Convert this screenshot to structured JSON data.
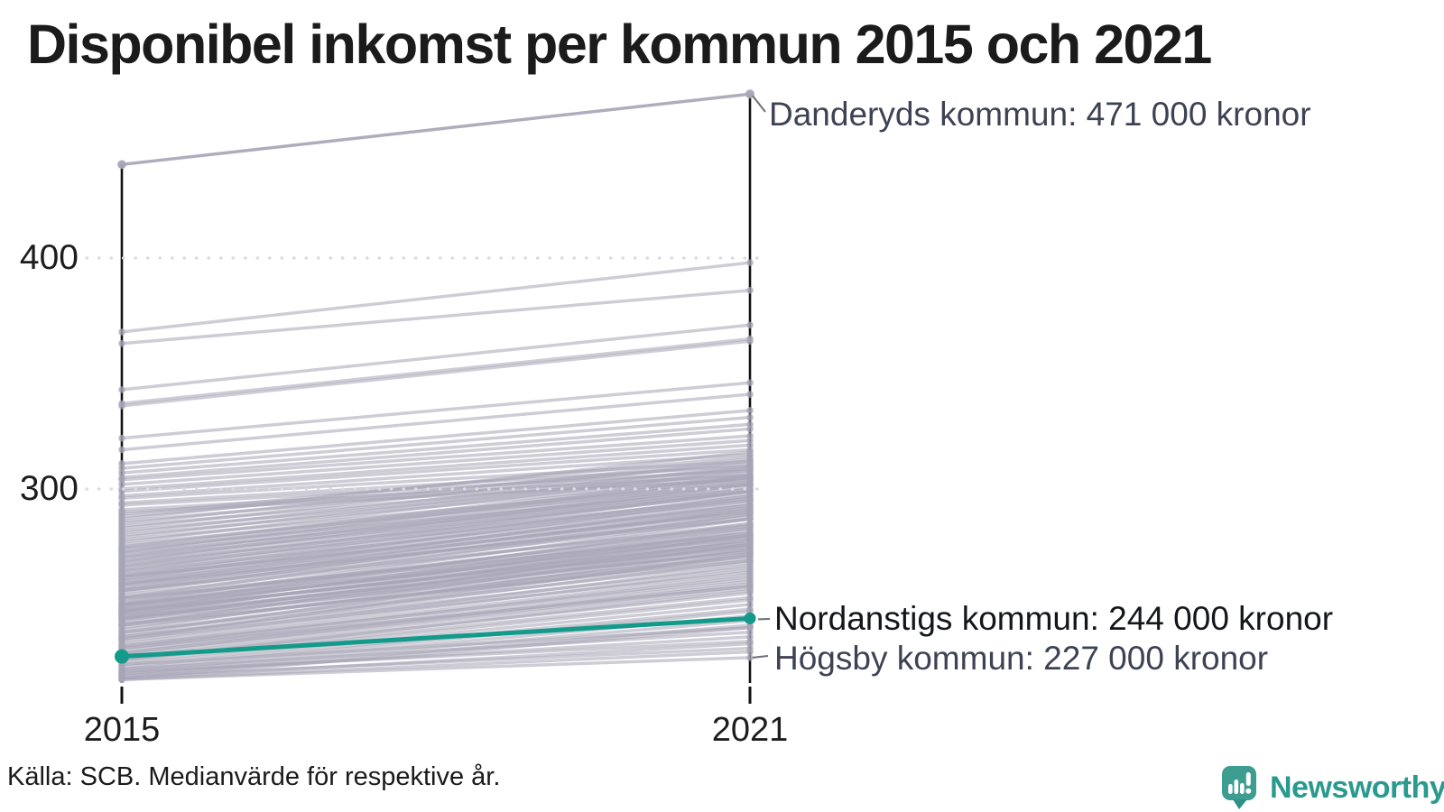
{
  "title": "Disponibel inkomst per kommun 2015 och 2021",
  "source": "Källa: SCB. Medianvärde för respektive år.",
  "brand": {
    "name": "Newsworthy"
  },
  "colors": {
    "highlight_teal": "#139a8a",
    "background_line_gray": "#a7a5b6",
    "axis_black": "#111111",
    "annotation_slate": "#3d4254",
    "annotation_black": "#14161c",
    "gridline_dot": "#dbdae2",
    "logo_teal": "#3e9d91",
    "logo_tail_teal": "#2e8f84",
    "wordmark_teal": "#2a9a8e"
  },
  "chart_data": {
    "type": "line",
    "subtype": "slope-chart",
    "x_labels": [
      "2015",
      "2021"
    ],
    "y_tick_labels": [
      "400",
      "300"
    ],
    "y_ticks": [
      400,
      300
    ],
    "unit": "tusen kronor (1000 kronor)",
    "y_axis_range": [
      217,
      471
    ],
    "grid": "dotted horizontal at ticks",
    "legend": "none",
    "annotations": [
      {
        "label": "Danderyds kommun: 471 000 kronor",
        "series": "Danderyds kommun",
        "year": 2021,
        "value": 471
      },
      {
        "label": "Nordanstigs kommun: 244 000 kronor",
        "series": "Nordanstigs kommun",
        "year": 2021,
        "value": 244
      },
      {
        "label": "Högsby kommun: 227 000 kronor",
        "series": "Högsby kommun",
        "year": 2021,
        "value": 227
      }
    ],
    "highlight_series": {
      "name": "Nordanstigs kommun",
      "values": [
        227.5,
        244
      ]
    },
    "extreme_series": {
      "top": {
        "name": "Danderyds kommun",
        "values": [
          440.5,
          471
        ]
      },
      "bottom": {
        "name": "Högsby kommun",
        "values": [
          217.5,
          227
        ]
      }
    },
    "background_series_note": "unlabeled gray municipality lines, values estimated from pixels [2015,2021]",
    "background_series": [
      [
        368,
        398
      ],
      [
        363,
        386
      ],
      [
        343,
        371
      ],
      [
        337,
        365
      ],
      [
        336,
        364
      ],
      [
        322,
        346
      ],
      [
        317,
        341
      ],
      [
        311,
        334
      ],
      [
        309,
        331
      ],
      [
        307,
        328
      ],
      [
        305,
        326
      ],
      [
        304,
        323
      ],
      [
        302,
        321
      ],
      [
        300,
        319
      ],
      [
        299,
        317
      ],
      [
        297,
        315
      ],
      [
        296,
        312
      ],
      [
        294,
        310
      ],
      [
        293,
        308
      ],
      [
        291,
        306
      ],
      [
        290,
        304
      ],
      [
        289,
        314
      ],
      [
        288,
        311
      ],
      [
        287,
        316
      ],
      [
        286,
        309
      ],
      [
        285,
        313
      ],
      [
        284,
        307
      ],
      [
        283,
        312
      ],
      [
        282,
        306
      ],
      [
        281,
        310
      ],
      [
        280,
        305
      ],
      [
        279,
        309
      ],
      [
        278,
        303
      ],
      [
        277,
        308
      ],
      [
        276,
        302
      ],
      [
        275,
        306
      ],
      [
        274,
        300
      ],
      [
        273,
        305
      ],
      [
        272,
        299
      ],
      [
        271,
        303
      ],
      [
        270,
        298
      ],
      [
        269,
        302
      ],
      [
        268,
        296
      ],
      [
        267,
        300
      ],
      [
        266,
        295
      ],
      [
        265,
        299
      ],
      [
        264,
        293
      ],
      [
        263,
        297
      ],
      [
        262,
        292
      ],
      [
        261,
        296
      ],
      [
        260,
        290
      ],
      [
        259,
        294
      ],
      [
        258,
        288
      ],
      [
        257,
        292
      ],
      [
        256,
        287
      ],
      [
        255,
        291
      ],
      [
        254,
        285
      ],
      [
        253,
        289
      ],
      [
        252,
        283
      ],
      [
        251,
        287
      ],
      [
        250,
        281
      ],
      [
        249,
        285
      ],
      [
        248,
        280
      ],
      [
        247,
        283
      ],
      [
        246,
        278
      ],
      [
        245,
        282
      ],
      [
        244,
        276
      ],
      [
        243,
        280
      ],
      [
        242,
        274
      ],
      [
        241,
        278
      ],
      [
        240,
        272
      ],
      [
        239,
        276
      ],
      [
        238,
        271
      ],
      [
        237,
        274
      ],
      [
        236,
        269
      ],
      [
        235,
        272
      ],
      [
        252.5,
        280
      ],
      [
        249.5,
        277
      ],
      [
        247.5,
        275
      ],
      [
        245.5,
        273
      ],
      [
        243.5,
        271
      ],
      [
        241.5,
        269
      ],
      [
        250.5,
        284
      ],
      [
        248.5,
        279
      ],
      [
        246.5,
        277
      ],
      [
        244.5,
        275
      ],
      [
        256.5,
        289
      ],
      [
        258.5,
        291
      ],
      [
        260.5,
        293
      ],
      [
        262.5,
        295
      ],
      [
        264.5,
        297
      ],
      [
        266.5,
        299
      ],
      [
        268.5,
        301
      ],
      [
        270.5,
        302
      ],
      [
        272.5,
        304
      ],
      [
        274.5,
        305
      ],
      [
        262,
        290
      ],
      [
        259,
        287
      ],
      [
        256,
        284
      ],
      [
        253,
        281
      ],
      [
        250,
        279
      ],
      [
        247,
        276
      ],
      [
        244,
        273
      ],
      [
        241,
        270
      ],
      [
        238,
        268
      ],
      [
        235,
        264
      ],
      [
        232,
        261
      ],
      [
        229,
        259
      ],
      [
        226,
        256
      ],
      [
        231,
        258
      ],
      [
        236,
        266
      ],
      [
        234,
        267
      ],
      [
        233,
        265
      ],
      [
        232,
        263
      ],
      [
        231,
        262
      ],
      [
        230,
        260
      ],
      [
        229,
        258
      ],
      [
        228,
        257
      ],
      [
        227,
        255
      ],
      [
        226,
        253
      ],
      [
        225,
        252
      ],
      [
        224,
        250
      ],
      [
        223,
        248
      ],
      [
        222,
        247
      ],
      [
        221,
        245
      ],
      [
        220,
        243
      ],
      [
        219,
        241
      ],
      [
        218,
        240
      ],
      [
        218,
        233
      ],
      [
        220,
        236
      ],
      [
        222,
        238
      ],
      [
        224,
        240
      ],
      [
        219,
        231
      ],
      [
        221,
        234
      ],
      [
        217.5,
        229.5
      ]
    ]
  }
}
